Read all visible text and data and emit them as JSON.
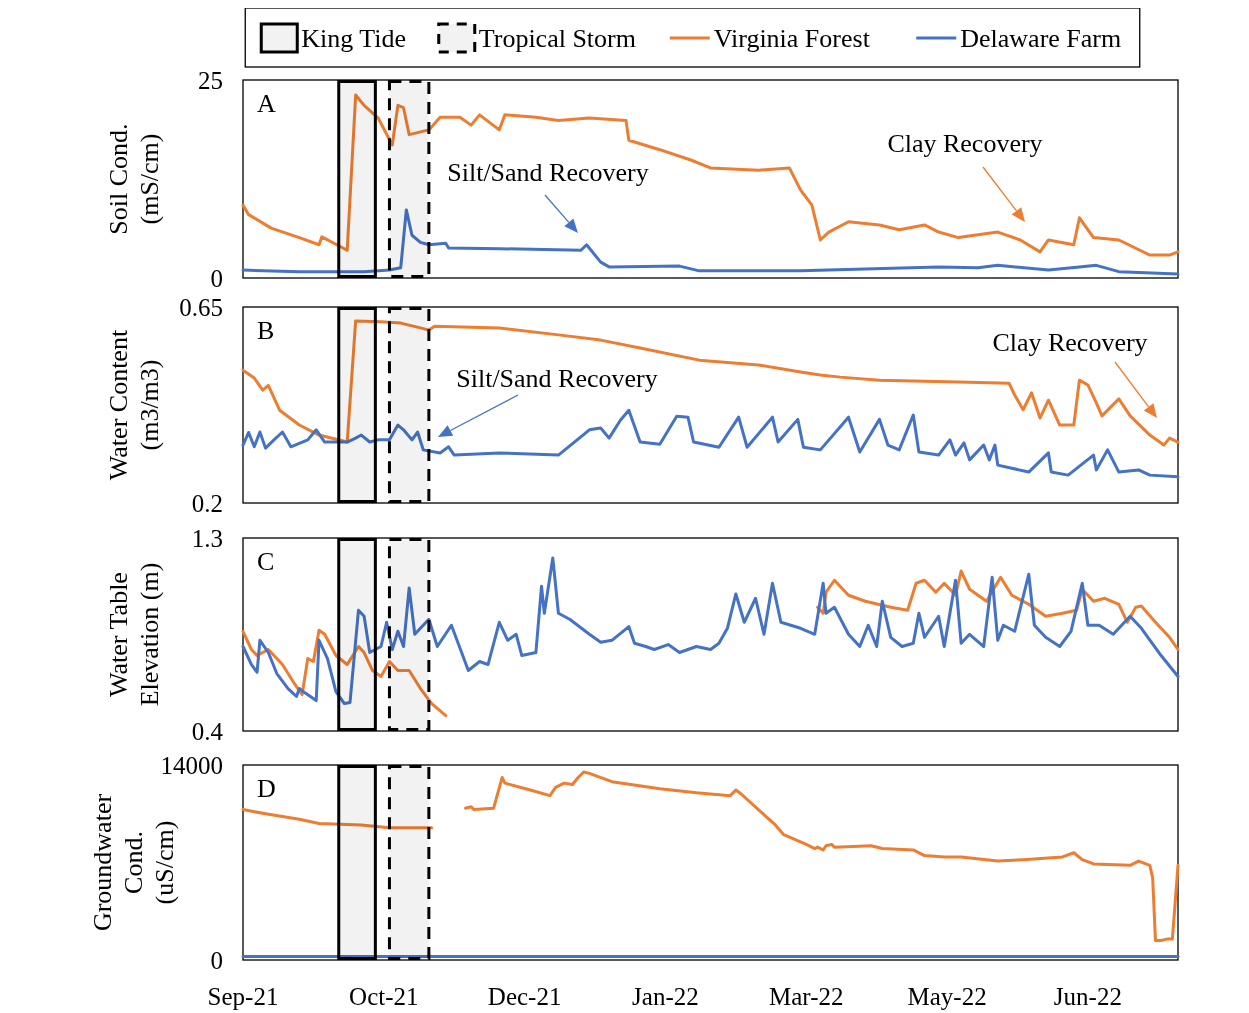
{
  "chart_data": [
    {
      "type": "line",
      "title": "A",
      "ylabel": "Soil Cond.\n(mS/cm)",
      "xlim": [
        "2021-09-01",
        "2022-07-30"
      ],
      "ylim": [
        0,
        25
      ],
      "yticks": [
        0,
        25
      ],
      "tick_labels": "y",
      "legend": "top",
      "bands": [
        {
          "axis": "x",
          "from": "2021-10-05",
          "to": "2021-10-18",
          "label": "King Tide",
          "color": "#000000"
        },
        {
          "axis": "x",
          "from": "2021-10-23",
          "to": "2021-11-06",
          "label": "Tropical Storm",
          "color": "#000000"
        }
      ],
      "annotations": [
        "Silt/Sand Recovery",
        "Clay Recovery"
      ],
      "series": [
        {
          "name": "Virginia Forest",
          "color": "#ed7d31",
          "x": [
            "2021-09-01",
            "2021-09-03",
            "2021-09-11",
            "2021-09-21",
            "2021-09-28",
            "2021-09-29",
            "2021-10-08",
            "2021-10-11",
            "2021-10-14",
            "2021-10-19",
            "2021-10-24",
            "2021-10-26",
            "2021-10-28",
            "2021-10-30",
            "2021-11-06",
            "2021-11-10",
            "2021-11-17",
            "2021-11-21",
            "2021-11-24",
            "2021-12-01",
            "2021-12-03",
            "2021-12-14",
            "2021-12-22",
            "2022-01-02",
            "2022-01-15",
            "2022-01-16",
            "2022-01-27",
            "2022-02-07",
            "2022-02-14",
            "2022-03-03",
            "2022-03-14",
            "2022-03-18",
            "2022-03-22",
            "2022-03-25",
            "2022-03-28",
            "2022-04-04",
            "2022-04-15",
            "2022-04-22",
            "2022-05-01",
            "2022-05-06",
            "2022-05-13",
            "2022-05-27",
            "2022-06-04",
            "2022-06-11",
            "2022-06-14",
            "2022-06-23",
            "2022-06-25",
            "2022-06-30",
            "2022-07-09",
            "2022-07-20",
            "2022-07-27",
            "2022-07-30"
          ],
          "values": [
            9.2,
            8.0,
            6.3,
            5.1,
            4.2,
            5.2,
            3.5,
            23.1,
            21.8,
            20.2,
            16.8,
            21.8,
            21.5,
            18.1,
            18.7,
            20.3,
            20.3,
            19.3,
            20.6,
            18.7,
            20.6,
            20.3,
            19.9,
            20.2,
            19.9,
            17.4,
            16.2,
            14.9,
            13.9,
            13.6,
            13.9,
            11.1,
            9.2,
            4.8,
            5.8,
            7.1,
            6.7,
            6.1,
            6.7,
            5.8,
            5.1,
            5.8,
            4.8,
            3.3,
            4.8,
            4.2,
            7.6,
            5.1,
            4.8,
            2.9,
            2.9,
            3.3
          ]
        },
        {
          "name": "Delaware Farm",
          "color": "#4472c4",
          "x": [
            "2021-09-01",
            "2021-09-21",
            "2021-10-14",
            "2021-10-23",
            "2021-10-27",
            "2021-10-29",
            "2021-10-31",
            "2021-11-03",
            "2021-11-06",
            "2021-11-12",
            "2021-11-13",
            "2021-12-01",
            "2021-12-30",
            "2022-01-01",
            "2022-01-06",
            "2022-01-09",
            "2022-02-03",
            "2022-02-10",
            "2022-03-18",
            "2022-05-06",
            "2022-05-20",
            "2022-05-27",
            "2022-06-14",
            "2022-06-25",
            "2022-07-01",
            "2022-07-09",
            "2022-07-30"
          ],
          "values": [
            1.0,
            0.8,
            0.8,
            1.0,
            1.3,
            8.6,
            5.4,
            4.5,
            4.2,
            4.4,
            3.8,
            3.7,
            3.5,
            4.2,
            2.0,
            1.4,
            1.5,
            0.9,
            0.9,
            1.4,
            1.3,
            1.6,
            1.0,
            1.4,
            1.6,
            0.8,
            0.5
          ]
        }
      ]
    },
    {
      "type": "line",
      "title": "B",
      "ylabel": "Water Content\n(m3/m3)",
      "xlim": [
        "2021-09-01",
        "2022-07-30"
      ],
      "ylim": [
        0.2,
        0.65
      ],
      "yticks": [
        0.2,
        0.65
      ],
      "tick_labels": "y",
      "bands": [
        {
          "axis": "x",
          "from": "2021-10-05",
          "to": "2021-10-18",
          "color": "#000000"
        },
        {
          "axis": "x",
          "from": "2021-10-23",
          "to": "2021-11-06",
          "color": "#000000"
        }
      ],
      "annotations": [
        "Silt/Sand Recovery",
        "Clay Recovery"
      ],
      "series": [
        {
          "color": "#ed7d31",
          "x": [
            "2021-09-01",
            "2021-09-05",
            "2021-09-08",
            "2021-09-10",
            "2021-09-14",
            "2021-09-21",
            "2021-09-28",
            "2021-10-08",
            "2021-10-11",
            "2021-10-20",
            "2021-10-27",
            "2021-11-03",
            "2021-11-06",
            "2021-11-08",
            "2021-12-01",
            "2021-12-22",
            "2022-01-06",
            "2022-01-20",
            "2022-02-10",
            "2022-03-03",
            "2022-03-18",
            "2022-03-25",
            "2022-04-01",
            "2022-04-15",
            "2022-05-13",
            "2022-05-31",
            "2022-06-02",
            "2022-06-05",
            "2022-06-08",
            "2022-06-11",
            "2022-06-14",
            "2022-06-18",
            "2022-06-23",
            "2022-06-25",
            "2022-06-28",
            "2022-07-01",
            "2022-07-03",
            "2022-07-09",
            "2022-07-13",
            "2022-07-20",
            "2022-07-25",
            "2022-07-27",
            "2022-07-30"
          ],
          "values": [
            0.505,
            0.487,
            0.459,
            0.47,
            0.413,
            0.379,
            0.356,
            0.34,
            0.618,
            0.616,
            0.613,
            0.602,
            0.597,
            0.606,
            0.602,
            0.586,
            0.574,
            0.556,
            0.528,
            0.517,
            0.501,
            0.494,
            0.489,
            0.482,
            0.478,
            0.475,
            0.448,
            0.414,
            0.453,
            0.395,
            0.436,
            0.379,
            0.379,
            0.482,
            0.471,
            0.43,
            0.4,
            0.439,
            0.4,
            0.356,
            0.333,
            0.349,
            0.34
          ]
        },
        {
          "color": "#4472c4",
          "x": [
            "2021-09-01",
            "2021-09-03",
            "2021-09-05",
            "2021-09-07",
            "2021-09-09",
            "2021-09-12",
            "2021-09-15",
            "2021-09-18",
            "2021-09-24",
            "2021-09-27",
            "2021-09-30",
            "2021-10-08",
            "2021-10-11",
            "2021-10-13",
            "2021-10-16",
            "2021-10-19",
            "2021-10-23",
            "2021-10-26",
            "2021-10-28",
            "2021-10-31",
            "2021-11-02",
            "2021-11-04",
            "2021-11-10",
            "2021-11-13",
            "2021-11-15",
            "2021-12-01",
            "2021-12-22",
            "2022-01-02",
            "2022-01-06",
            "2022-01-09",
            "2022-01-13",
            "2022-01-16",
            "2022-01-20",
            "2022-01-27",
            "2022-02-02",
            "2022-02-06",
            "2022-02-08",
            "2022-02-17",
            "2022-02-24",
            "2022-02-27",
            "2022-03-08",
            "2022-03-10",
            "2022-03-17",
            "2022-03-19",
            "2022-03-25",
            "2022-04-04",
            "2022-04-08",
            "2022-04-15",
            "2022-04-18",
            "2022-04-22",
            "2022-04-27",
            "2022-04-29",
            "2022-05-06",
            "2022-05-10",
            "2022-05-12",
            "2022-05-15",
            "2022-05-17",
            "2022-05-22",
            "2022-05-24",
            "2022-05-26",
            "2022-05-27",
            "2022-06-07",
            "2022-06-14",
            "2022-06-15",
            "2022-06-21",
            "2022-06-30",
            "2022-07-01",
            "2022-07-05",
            "2022-07-09",
            "2022-07-16",
            "2022-07-20",
            "2022-07-30"
          ],
          "values": [
            0.333,
            0.362,
            0.329,
            0.363,
            0.326,
            0.345,
            0.363,
            0.329,
            0.345,
            0.368,
            0.34,
            0.34,
            0.349,
            0.356,
            0.34,
            0.345,
            0.345,
            0.379,
            0.368,
            0.345,
            0.363,
            0.322,
            0.315,
            0.329,
            0.31,
            0.315,
            0.31,
            0.368,
            0.372,
            0.349,
            0.39,
            0.413,
            0.34,
            0.335,
            0.399,
            0.397,
            0.34,
            0.328,
            0.397,
            0.328,
            0.397,
            0.34,
            0.392,
            0.328,
            0.322,
            0.397,
            0.317,
            0.392,
            0.333,
            0.322,
            0.402,
            0.317,
            0.31,
            0.345,
            0.31,
            0.338,
            0.299,
            0.333,
            0.299,
            0.333,
            0.287,
            0.271,
            0.315,
            0.271,
            0.264,
            0.31,
            0.276,
            0.322,
            0.271,
            0.276,
            0.264,
            0.26
          ]
        }
      ]
    },
    {
      "type": "line",
      "title": "C",
      "ylabel": "Water Table\nElevation (m)",
      "xlim": [
        "2021-09-01",
        "2022-07-30"
      ],
      "ylim": [
        0.4,
        1.3
      ],
      "yticks": [
        0.4,
        1.3
      ],
      "tick_labels": "y",
      "bands": [
        {
          "axis": "x",
          "from": "2021-10-05",
          "to": "2021-10-18",
          "color": "#000000"
        },
        {
          "axis": "x",
          "from": "2021-10-23",
          "to": "2021-11-06",
          "color": "#000000"
        }
      ],
      "series": [
        {
          "color": "#ed7d31",
          "x": [
            "2021-09-01",
            "2021-09-04",
            "2021-09-06",
            "2021-09-10",
            "2021-09-15",
            "2021-09-19",
            "2021-09-22",
            "2021-09-24",
            "2021-09-26",
            "2021-09-28",
            "2021-09-30",
            "2021-10-04",
            "2021-10-08",
            "2021-10-12",
            "2021-10-14",
            "2021-10-17",
            "2021-10-20",
            "2021-10-23",
            "2021-10-26",
            "2021-10-30",
            "2021-11-03",
            "2021-11-07",
            "2021-11-12",
            "2021-12-01",
            "2022-03-24",
            "2022-03-26",
            "2022-03-27",
            "2022-03-30",
            "2022-04-04",
            "2022-04-10",
            "2022-04-19",
            "2022-04-25",
            "2022-04-28",
            "2022-05-01",
            "2022-05-05",
            "2022-05-08",
            "2022-05-12",
            "2022-05-14",
            "2022-05-17",
            "2022-05-23",
            "2022-05-28",
            "2022-06-01",
            "2022-06-07",
            "2022-06-13",
            "2022-06-19",
            "2022-06-24",
            "2022-06-26",
            "2022-06-30",
            "2022-07-04",
            "2022-07-09",
            "2022-07-12",
            "2022-07-15",
            "2022-07-17",
            "2022-07-22",
            "2022-07-27",
            "2022-07-30"
          ],
          "values": [
            0.865,
            0.78,
            0.752,
            0.78,
            0.71,
            0.626,
            0.57,
            0.738,
            0.724,
            0.87,
            0.851,
            0.752,
            0.71,
            0.794,
            0.766,
            0.682,
            0.654,
            0.724,
            0.682,
            0.682,
            0.598,
            0.528,
            0.472,
            null,
            0.977,
            0.949,
            1.047,
            1.103,
            1.033,
            1.005,
            0.977,
            0.963,
            1.089,
            1.103,
            1.047,
            1.089,
            1.033,
            1.146,
            1.061,
            1.005,
            1.117,
            1.033,
            0.991,
            0.935,
            0.949,
            0.963,
            1.061,
            1.005,
            1.019,
            0.991,
            0.907,
            0.977,
            0.983,
            0.907,
            0.837,
            0.78
          ]
        },
        {
          "color": "#4472c4",
          "x": [
            "2021-09-01",
            "2021-09-04",
            "2021-09-06",
            "2021-09-07",
            "2021-09-10",
            "2021-09-13",
            "2021-09-17",
            "2021-09-20",
            "2021-09-21",
            "2021-09-23",
            "2021-09-27",
            "2021-09-28",
            "2021-10-01",
            "2021-10-04",
            "2021-10-07",
            "2021-10-09",
            "2021-10-12",
            "2021-10-14",
            "2021-10-16",
            "2021-10-20",
            "2021-10-22",
            "2021-10-24",
            "2021-10-26",
            "2021-10-28",
            "2021-10-30",
            "2021-11-01",
            "2021-11-06",
            "2021-11-09",
            "2021-11-14",
            "2021-11-16",
            "2021-11-20",
            "2021-11-24",
            "2021-11-27",
            "2021-12-01",
            "2021-12-04",
            "2021-12-07",
            "2021-12-09",
            "2021-12-14",
            "2021-12-16",
            "2021-12-17",
            "2021-12-20",
            "2021-12-22",
            "2021-12-26",
            "2022-01-02",
            "2022-01-06",
            "2022-01-10",
            "2022-01-16",
            "2022-01-18",
            "2022-01-22",
            "2022-01-25",
            "2022-01-30",
            "2022-02-03",
            "2022-02-09",
            "2022-02-14",
            "2022-02-17",
            "2022-02-20",
            "2022-02-23",
            "2022-02-26",
            "2022-03-02",
            "2022-03-05",
            "2022-03-08",
            "2022-03-11",
            "2022-03-18",
            "2022-03-23",
            "2022-03-26",
            "2022-03-27",
            "2022-03-30",
            "2022-04-04",
            "2022-04-08",
            "2022-04-11",
            "2022-04-14",
            "2022-04-16",
            "2022-04-19",
            "2022-04-23",
            "2022-04-27",
            "2022-04-29",
            "2022-05-01",
            "2022-05-06",
            "2022-05-08",
            "2022-05-12",
            "2022-05-14",
            "2022-05-17",
            "2022-05-22",
            "2022-05-25",
            "2022-05-27",
            "2022-05-29",
            "2022-06-02",
            "2022-06-07",
            "2022-06-09",
            "2022-06-13",
            "2022-06-18",
            "2022-06-22",
            "2022-06-26",
            "2022-06-28",
            "2022-07-02",
            "2022-07-07",
            "2022-07-13",
            "2022-07-17",
            "2022-07-24",
            "2022-07-30"
          ],
          "values": [
            0.794,
            0.71,
            0.674,
            0.823,
            0.766,
            0.668,
            0.598,
            0.561,
            0.598,
            0.578,
            0.542,
            0.823,
            0.738,
            0.584,
            0.528,
            0.533,
            0.963,
            0.935,
            0.766,
            0.794,
            0.907,
            0.78,
            0.865,
            0.794,
            1.067,
            0.851,
            0.921,
            0.794,
            0.893,
            0.823,
            0.682,
            0.724,
            0.71,
            0.907,
            0.823,
            0.851,
            0.752,
            0.766,
            1.075,
            0.949,
            1.207,
            0.949,
            0.921,
            0.851,
            0.814,
            0.823,
            0.887,
            0.809,
            0.794,
            0.78,
            0.803,
            0.766,
            0.794,
            0.78,
            0.809,
            0.879,
            1.039,
            0.907,
            1.019,
            0.851,
            1.089,
            0.907,
            0.879,
            0.851,
            1.089,
            0.949,
            0.977,
            0.851,
            0.794,
            0.893,
            0.794,
            1.005,
            0.837,
            0.794,
            0.809,
            0.949,
            0.837,
            0.935,
            0.794,
            1.103,
            0.809,
            0.851,
            0.794,
            1.117,
            0.823,
            0.893,
            0.865,
            1.131,
            0.893,
            0.837,
            0.794,
            0.865,
            1.089,
            0.893,
            0.893,
            0.851,
            0.935,
            0.879,
            0.752,
            0.654
          ]
        }
      ]
    },
    {
      "type": "line",
      "title": "D",
      "ylabel": "Groundwater\nCond.\n(uS/cm)",
      "xlim": [
        "2021-09-01",
        "2022-07-30"
      ],
      "ylim": [
        0,
        14000
      ],
      "yticks": [
        0,
        14000
      ],
      "bands": [
        {
          "axis": "x",
          "from": "2021-10-05",
          "to": "2021-10-18",
          "color": "#000000"
        },
        {
          "axis": "x",
          "from": "2021-10-23",
          "to": "2021-11-06",
          "color": "#000000"
        }
      ],
      "xticks": [
        {
          "value": "2021-09-01",
          "label": "Sep-21"
        },
        {
          "value": "2021-10-21",
          "label": "Oct-21"
        },
        {
          "value": "2021-12-10",
          "label": "Dec-21"
        },
        {
          "value": "2022-01-29",
          "label": "Jan-22"
        },
        {
          "value": "2022-03-20",
          "label": "Mar-22"
        },
        {
          "value": "2022-05-09",
          "label": "May-22"
        },
        {
          "value": "2022-06-28",
          "label": "Jun-22"
        }
      ],
      "series": [
        {
          "color": "#ed7d31",
          "x": [
            "2021-09-01",
            "2021-09-09",
            "2021-09-21",
            "2021-09-28",
            "2021-10-13",
            "2021-10-23",
            "2021-11-07",
            "2021-11-13",
            "2021-11-19",
            "2021-11-21",
            "2021-11-22",
            "2021-11-29",
            "2021-12-02",
            "2021-12-03",
            "2021-12-12",
            "2021-12-19",
            "2021-12-21",
            "2021-12-24",
            "2021-12-27",
            "2021-12-29",
            "2021-12-31",
            "2022-01-02",
            "2022-01-10",
            "2022-01-27",
            "2022-02-09",
            "2022-02-21",
            "2022-02-23",
            "2022-02-25",
            "2022-03-03",
            "2022-03-09",
            "2022-03-12",
            "2022-03-20",
            "2022-03-23",
            "2022-03-24",
            "2022-03-26",
            "2022-03-27",
            "2022-03-29",
            "2022-03-30",
            "2022-04-12",
            "2022-04-16",
            "2022-04-27",
            "2022-05-01",
            "2022-05-08",
            "2022-05-14",
            "2022-05-27",
            "2022-06-05",
            "2022-06-19",
            "2022-06-23",
            "2022-06-26",
            "2022-06-30",
            "2022-07-13",
            "2022-07-16",
            "2022-07-20",
            "2022-07-21",
            "2022-07-22",
            "2022-07-24",
            "2022-07-26",
            "2022-07-28",
            "2022-07-30"
          ],
          "values": [
            10800,
            10500,
            10100,
            9800,
            9700,
            9500,
            9500,
            null,
            10900,
            11000,
            10800,
            10900,
            13100,
            12700,
            12200,
            11800,
            12400,
            12700,
            12600,
            13100,
            13500,
            13400,
            12800,
            12300,
            12000,
            11800,
            12200,
            11900,
            10800,
            9700,
            9000,
            8300,
            8000,
            8100,
            7900,
            8200,
            8300,
            8100,
            8200,
            8000,
            7900,
            7500,
            7400,
            7400,
            7100,
            7200,
            7400,
            7700,
            7200,
            6900,
            6800,
            7100,
            6800,
            5900,
            1400,
            1400,
            1500,
            1500,
            6800
          ]
        },
        {
          "color": "#4472c4",
          "x": [
            "2021-09-01",
            "2021-11-01",
            "2022-03-01",
            "2022-07-30"
          ],
          "values": [
            250,
            250,
            250,
            250
          ]
        }
      ]
    }
  ]
}
